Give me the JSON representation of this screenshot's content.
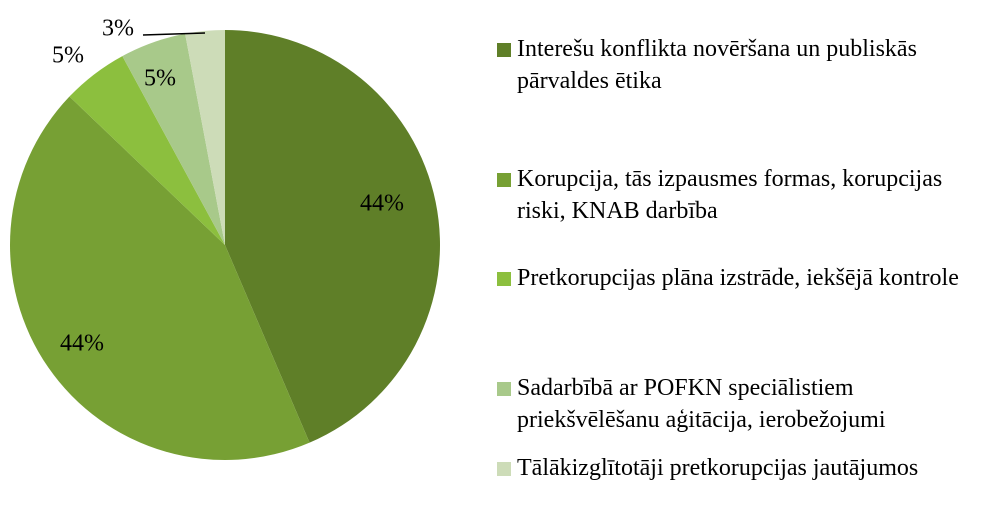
{
  "chart_data": {
    "type": "pie",
    "categories": [
      "Interešu konflikta novēršana un publiskās pārvaldes ētika",
      "Korupcija, tās izpausmes formas, korupcijas riski, KNAB darbība",
      "Pretkorupcijas plāna izstrāde, iekšējā kontrole",
      "Sadarbībā ar POFKN speciālistiem priekšvēlēšanu aģitācija, ierobežojumi",
      "Tālākizglītotāji pretkorupcijas jautājumos"
    ],
    "values": [
      44,
      44,
      5,
      5,
      3
    ],
    "value_labels": [
      "44%",
      "44%",
      "5%",
      "5%",
      "3%"
    ],
    "colors": [
      "#5f7f28",
      "#77a034",
      "#8cbf3e",
      "#a8c98a",
      "#cddcb8"
    ],
    "legend": "right"
  }
}
